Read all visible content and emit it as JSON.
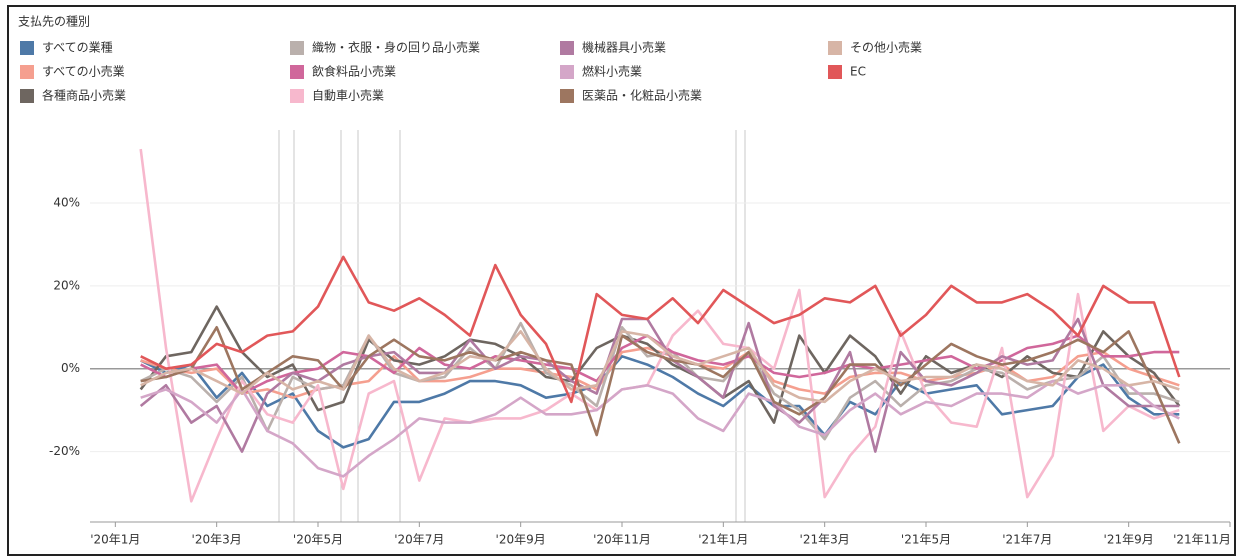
{
  "chart_data": {
    "type": "line",
    "legend_title": "支払先の種別",
    "x": [
      0.5,
      1,
      1.5,
      2,
      2.5,
      3,
      3.5,
      4,
      4.5,
      5,
      5.5,
      6,
      6.5,
      7,
      7.5,
      8,
      8.5,
      9,
      9.5,
      10,
      10.5,
      11,
      11.5,
      12,
      12.5,
      13,
      13.5,
      14,
      14.5,
      15,
      15.5,
      16,
      16.5,
      17,
      17.5,
      18,
      18.5,
      19,
      19.5,
      20,
      20.5,
      21
    ],
    "xlim": [
      -0.5,
      22
    ],
    "xticks": [
      {
        "value": 0,
        "label": "'20年1月"
      },
      {
        "value": 2,
        "label": "'20年3月"
      },
      {
        "value": 4,
        "label": "'20年5月"
      },
      {
        "value": 6,
        "label": "'20年7月"
      },
      {
        "value": 8,
        "label": "'20年9月"
      },
      {
        "value": 10,
        "label": "'20年11月"
      },
      {
        "value": 12,
        "label": "'21年1月"
      },
      {
        "value": 14,
        "label": "'21年3月"
      },
      {
        "value": 16,
        "label": "'21年5月"
      },
      {
        "value": 18,
        "label": "'21年7月"
      },
      {
        "value": 20,
        "label": "'21年9月"
      },
      {
        "value": 22,
        "label": "'21年11月"
      }
    ],
    "ylim": [
      -37,
      61
    ],
    "yticks": [
      {
        "value": -20,
        "label": "-20%"
      },
      {
        "value": 0,
        "label": "0%"
      },
      {
        "value": 20,
        "label": "20%"
      },
      {
        "value": 40,
        "label": "40%"
      }
    ],
    "grid": true,
    "series": [
      {
        "name": "すべての業種",
        "color": "#4e79a7",
        "values": [
          2,
          -1,
          1,
          -7,
          -1,
          -9,
          -6,
          -15,
          -19,
          -17,
          -8,
          -8,
          -6,
          -3,
          -3,
          -4,
          -7,
          -6,
          -4,
          3,
          1,
          -2,
          -6,
          -9,
          -4,
          -9,
          -9,
          -16,
          -8,
          -11,
          -3,
          -6,
          -5,
          -4,
          -11,
          -10,
          -9,
          -2,
          1,
          -7,
          -11,
          -11
        ]
      },
      {
        "name": "すべての小売業",
        "color": "#f59f8f",
        "values": [
          2,
          0,
          -1,
          0,
          -6,
          -5,
          -7,
          -5,
          -4,
          -3,
          3,
          -3,
          -3,
          -2,
          0,
          0,
          -1,
          -2,
          -5,
          4,
          5,
          3,
          1,
          0,
          4,
          -3,
          -5,
          -6,
          -2,
          -1,
          -1,
          -3,
          -2,
          -1,
          1,
          -3,
          -2,
          3,
          4,
          0,
          -2,
          -4
        ]
      },
      {
        "name": "各種商品小売業",
        "color": "#6e6660",
        "values": [
          -5,
          3,
          4,
          15,
          4,
          -2,
          1,
          -10,
          -8,
          7,
          2,
          1,
          3,
          7,
          6,
          3,
          -2,
          -3,
          5,
          8,
          6,
          1,
          -2,
          -7,
          -3,
          -13,
          8,
          -1,
          8,
          3,
          -6,
          3,
          -1,
          1,
          -2,
          3,
          -1,
          -2,
          9,
          3,
          -1,
          -9
        ]
      },
      {
        "name": "織物・衣服・身の回り品小売業",
        "color": "#bab0ac",
        "values": [
          -3,
          0,
          -2,
          -8,
          -2,
          -15,
          -2,
          -5,
          -4,
          8,
          -1,
          -3,
          -2,
          5,
          0,
          11,
          -1,
          -4,
          -9,
          10,
          3,
          4,
          -2,
          -3,
          4,
          -6,
          -10,
          -17,
          -7,
          -3,
          -9,
          -4,
          -3,
          0,
          -1,
          -5,
          -3,
          -2,
          3,
          -6,
          -6,
          -8
        ]
      },
      {
        "name": "飲食料品小売業",
        "color": "#d0679b",
        "values": [
          1,
          -2,
          0,
          1,
          -6,
          -3,
          -1,
          0,
          4,
          3,
          -1,
          5,
          1,
          0,
          3,
          2,
          1,
          0,
          -3,
          5,
          8,
          4,
          2,
          1,
          3,
          -1,
          -2,
          -1,
          1,
          0,
          1,
          2,
          3,
          0,
          2,
          5,
          6,
          8,
          3,
          3,
          4,
          4
        ]
      },
      {
        "name": "自動車小売業",
        "color": "#f7b8cd",
        "values": [
          53,
          5,
          -32,
          -17,
          -3,
          -11,
          -13,
          -4,
          -29,
          -6,
          -3,
          -27,
          -12,
          -13,
          -12,
          -12,
          -10,
          -6,
          -10,
          -5,
          -4,
          8,
          14,
          6,
          5,
          0,
          19,
          -31,
          -21,
          -14,
          9,
          -6,
          -13,
          -14,
          5,
          -31,
          -21,
          18,
          -15,
          -9,
          -12,
          -10
        ]
      },
      {
        "name": "機械器具小売業",
        "color": "#b07aa1",
        "values": [
          -9,
          -4,
          -13,
          -9,
          -20,
          -6,
          -1,
          -3,
          1,
          3,
          4,
          -1,
          -1,
          7,
          0,
          3,
          2,
          -3,
          -6,
          12,
          12,
          2,
          -2,
          -7,
          11,
          -9,
          -13,
          -7,
          4,
          -20,
          4,
          -3,
          -4,
          -1,
          3,
          1,
          2,
          12,
          -4,
          -9,
          -9,
          -9
        ]
      },
      {
        "name": "燃料小売業",
        "color": "#d4a6c8",
        "values": [
          -7,
          -5,
          -8,
          -13,
          -5,
          -15,
          -18,
          -24,
          -26,
          -21,
          -17,
          -12,
          -13,
          -13,
          -11,
          -7,
          -11,
          -11,
          -10,
          -5,
          -4,
          -6,
          -12,
          -15,
          -6,
          -8,
          -14,
          -16,
          -10,
          -6,
          -11,
          -8,
          -9,
          -6,
          -6,
          -7,
          -3,
          -6,
          -4,
          -4,
          -9,
          -12
        ]
      },
      {
        "name": "医薬品・化粧品小売業",
        "color": "#9d7660",
        "values": [
          -3,
          -2,
          0,
          10,
          -5,
          -1,
          3,
          2,
          -5,
          3,
          7,
          3,
          2,
          4,
          2,
          4,
          2,
          1,
          -16,
          8,
          4,
          2,
          1,
          -2,
          4,
          -8,
          -11,
          -7,
          1,
          1,
          -4,
          1,
          6,
          3,
          1,
          2,
          4,
          7,
          4,
          9,
          -4,
          -18
        ]
      },
      {
        "name": "その他小売業",
        "color": "#d7b5a6",
        "values": [
          -4,
          -1,
          0,
          -3,
          -6,
          -1,
          -5,
          -3,
          -5,
          8,
          0,
          -3,
          -1,
          3,
          2,
          9,
          0,
          -5,
          -4,
          9,
          8,
          3,
          1,
          3,
          5,
          -4,
          -7,
          -8,
          -3,
          0,
          -3,
          -2,
          -2,
          1,
          0,
          -3,
          -4,
          2,
          0,
          -4,
          -3,
          -5
        ]
      },
      {
        "name": "EC",
        "color": "#e15759",
        "values": [
          3,
          0,
          1,
          6,
          4,
          8,
          9,
          15,
          27,
          16,
          14,
          17,
          13,
          8,
          25,
          13,
          6,
          -8,
          18,
          13,
          12,
          17,
          11,
          19,
          15,
          11,
          13,
          17,
          16,
          20,
          8,
          13,
          20,
          16,
          16,
          18,
          14,
          8,
          20,
          16,
          16,
          -2
        ]
      }
    ]
  }
}
